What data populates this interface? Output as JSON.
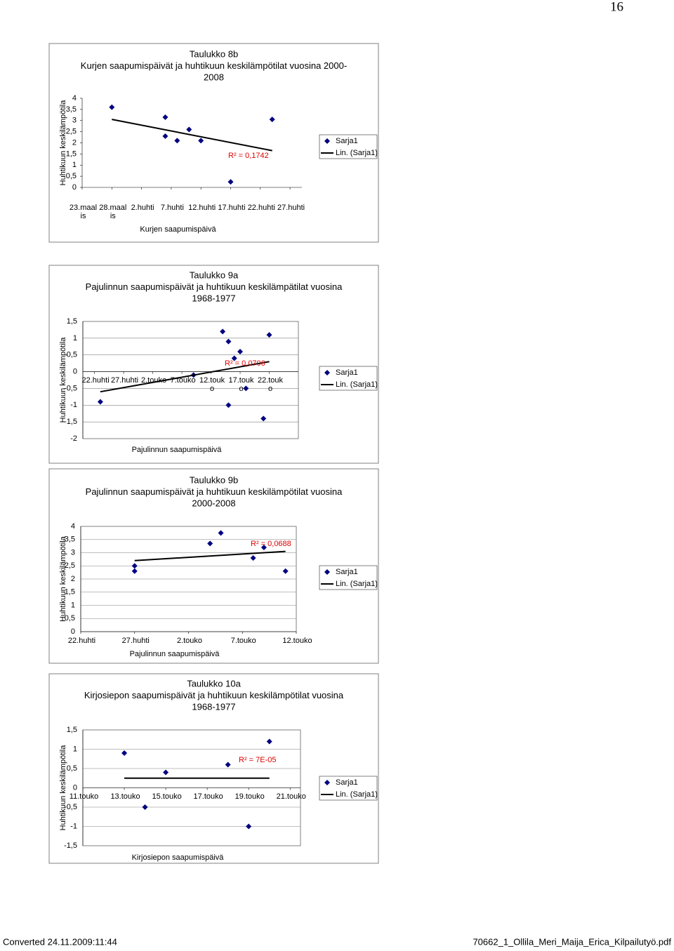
{
  "page_number": "16",
  "footer": {
    "left": "Converted 24.11.2009:11:44",
    "right": "70662_1_Ollila_Meri_Maija_Erica_Kilpailutyö.pdf"
  },
  "chart_data": [
    {
      "type": "scatter",
      "title": [
        "Taulukko 8b",
        "Kurjen saapumispäivät ja huhtikuun keskilämpötilat vuosina 2000-",
        "2008"
      ],
      "xlabel": "Kurjen saapumispäivä",
      "ylabel": "Huhtikuun keskilämpötila",
      "series": [
        {
          "name": "Sarja1",
          "color": "#000080",
          "x": [
            87,
            96,
            96,
            98,
            100,
            102,
            107,
            114
          ],
          "values": [
            3.6,
            3.15,
            2.3,
            2.1,
            2.6,
            2.1,
            0.25,
            3.05
          ]
        },
        {
          "name": "Lin. (Sarja1)",
          "color": "#000000",
          "trend": true,
          "x": [
            87,
            114
          ],
          "values": [
            3.05,
            1.65
          ]
        }
      ],
      "annotations": [
        "R² = 0,1742"
      ],
      "xlim": [
        82,
        119
      ],
      "xticks": [
        {
          "value": 82,
          "label": "23.maalis"
        },
        {
          "value": 87,
          "label": "28.maalis"
        },
        {
          "value": 92,
          "label": "2.huhti"
        },
        {
          "value": 97,
          "label": "7.huhti"
        },
        {
          "value": 102,
          "label": "12.huhti"
        },
        {
          "value": 107,
          "label": "17.huhti"
        },
        {
          "value": 112,
          "label": "22.huhti"
        },
        {
          "value": 117,
          "label": "27.huhti"
        }
      ],
      "ylim": [
        0,
        4
      ],
      "yticks": [
        0,
        {
          "value": 0.5,
          "label": "0,5"
        },
        1,
        {
          "value": 1.5,
          "label": "1,5"
        },
        2,
        {
          "value": 2.5,
          "label": "2,5"
        },
        3,
        {
          "value": 3.5,
          "label": "3,5"
        },
        4
      ],
      "grid": false,
      "legend": "right"
    },
    {
      "type": "scatter",
      "title": [
        "Taulukko 9a",
        "Pajulinnun saapumispäivät ja huhtikuun keskilämpätilat vuosina",
        "1968-1977"
      ],
      "xlabel": "Pajulinnun saapumispäivä",
      "ylabel": "Huhtikuun keskilämpötila",
      "series": [
        {
          "name": "Sarja1",
          "color": "#000080",
          "x": [
            113,
            129,
            134,
            135,
            136,
            137,
            135,
            138,
            141,
            142
          ],
          "values": [
            -0.9,
            -0.1,
            1.2,
            0.9,
            0.4,
            0.6,
            -1,
            -0.5,
            -1.4,
            1.1
          ]
        },
        {
          "name": "Lin. (Sarja1)",
          "color": "#000000",
          "trend": true,
          "x": [
            113,
            142
          ],
          "values": [
            -0.6,
            0.3
          ]
        }
      ],
      "annotations": [
        "R² = 0,0706"
      ],
      "xlim": [
        110,
        147
      ],
      "xticks": [
        {
          "value": 112,
          "label": "22.huhti"
        },
        {
          "value": 117,
          "label": "27.huhti"
        },
        {
          "value": 122,
          "label": "2.touko"
        },
        {
          "value": 127,
          "label": "7.touko"
        },
        {
          "value": 132,
          "label": "12.touko"
        },
        {
          "value": 137,
          "label": "17.touko"
        },
        {
          "value": 142,
          "label": "22.touko"
        }
      ],
      "ylim": [
        -2,
        1.5
      ],
      "yticks": [
        -2,
        {
          "value": -1.5,
          "label": "-1,5"
        },
        -1,
        {
          "value": -0.5,
          "label": "-0,5"
        },
        0,
        {
          "value": 0.5,
          "label": "0,5"
        },
        1,
        {
          "value": 1.5,
          "label": "1,5"
        }
      ],
      "grid": true,
      "legend": "right"
    },
    {
      "type": "scatter",
      "title": [
        "Taulukko 9b",
        "Pajulinnun saapumispäivät  ja huhtikuun keskilämpötilat vuosina",
        "2000-2008"
      ],
      "xlabel": "Pajulinnun saapumispäivä",
      "ylabel": "Huhtikuun keskilämpötila",
      "series": [
        {
          "name": "Sarja1",
          "color": "#000080",
          "x": [
            117,
            117,
            124,
            125,
            128,
            129,
            131
          ],
          "values": [
            2.5,
            2.3,
            3.35,
            3.75,
            2.8,
            3.2,
            2.3
          ]
        },
        {
          "name": "Lin. (Sarja1)",
          "color": "#000000",
          "trend": true,
          "x": [
            117,
            131
          ],
          "values": [
            2.7,
            3.05
          ]
        }
      ],
      "annotations": [
        "R² = 0,0688"
      ],
      "xlim": [
        112,
        132
      ],
      "xticks": [
        {
          "value": 112,
          "label": "22.huhti"
        },
        {
          "value": 117,
          "label": "27.huhti"
        },
        {
          "value": 122,
          "label": "2.touko"
        },
        {
          "value": 127,
          "label": "7.touko"
        },
        {
          "value": 132,
          "label": "12.touko"
        }
      ],
      "ylim": [
        0,
        4
      ],
      "yticks": [
        0,
        {
          "value": 0.5,
          "label": "0,5"
        },
        1,
        {
          "value": 1.5,
          "label": "1,5"
        },
        2,
        {
          "value": 2.5,
          "label": "2,5"
        },
        3,
        {
          "value": 3.5,
          "label": "3,5"
        },
        4
      ],
      "grid": true,
      "legend": "right"
    },
    {
      "type": "scatter",
      "title": [
        "Taulukko 10a",
        "Kirjosiepon saapumispäivät  ja huhtikuun keskilämpötilat vuosina",
        "1968-1977"
      ],
      "xlabel": "Kirjosiepon saapumispäivä",
      "ylabel": "Huhtikuun keskilämpötila",
      "series": [
        {
          "name": "Sarja1",
          "color": "#000080",
          "x": [
            133,
            134,
            135,
            138,
            139,
            140
          ],
          "values": [
            0.9,
            -0.5,
            0.4,
            0.6,
            -1,
            1.2
          ]
        },
        {
          "name": "Lin. (Sarja1)",
          "color": "#000000",
          "trend": true,
          "x": [
            133,
            140
          ],
          "values": [
            0.25,
            0.25
          ]
        }
      ],
      "annotations": [
        "R² = 7E-05"
      ],
      "xlim": [
        131,
        141.5
      ],
      "xticks": [
        {
          "value": 131,
          "label": "11.touko"
        },
        {
          "value": 133,
          "label": "13.touko"
        },
        {
          "value": 135,
          "label": "15.touko"
        },
        {
          "value": 137,
          "label": "17.touko"
        },
        {
          "value": 139,
          "label": "19.touko"
        },
        {
          "value": 141,
          "label": "21.touko"
        }
      ],
      "ylim": [
        -1.5,
        1.5
      ],
      "yticks": [
        {
          "value": -1.5,
          "label": "-1,5"
        },
        -1,
        {
          "value": -0.5,
          "label": "-0,5"
        },
        0,
        {
          "value": 0.5,
          "label": "0,5"
        },
        1,
        {
          "value": 1.5,
          "label": "1,5"
        }
      ],
      "grid": true,
      "legend": "right"
    }
  ]
}
